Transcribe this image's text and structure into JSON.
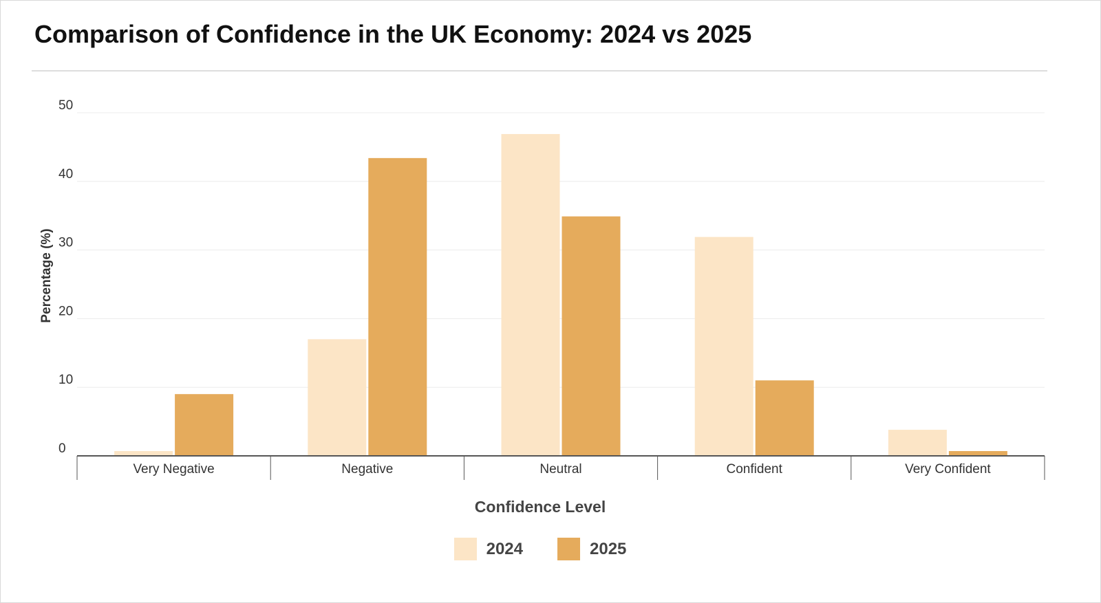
{
  "chart_data": {
    "type": "bar",
    "title": "Comparison of Confidence in the UK Economy: 2024 vs 2025",
    "xlabel": "Confidence Level",
    "ylabel": "Percentage (%)",
    "ylim": [
      0,
      50
    ],
    "yticks": [
      0,
      10,
      20,
      30,
      40,
      50
    ],
    "grid": true,
    "legend_position": "bottom-center",
    "categories": [
      "Very Negative",
      "Negative",
      "Neutral",
      "Confident",
      "Very Confident"
    ],
    "series": [
      {
        "name": "2024",
        "color": "#fce5c6",
        "values": [
          0.7,
          17.0,
          46.9,
          31.9,
          3.8
        ]
      },
      {
        "name": "2025",
        "color": "#e5ab5c",
        "values": [
          9.0,
          43.4,
          34.9,
          11.0,
          0.7
        ]
      }
    ]
  }
}
